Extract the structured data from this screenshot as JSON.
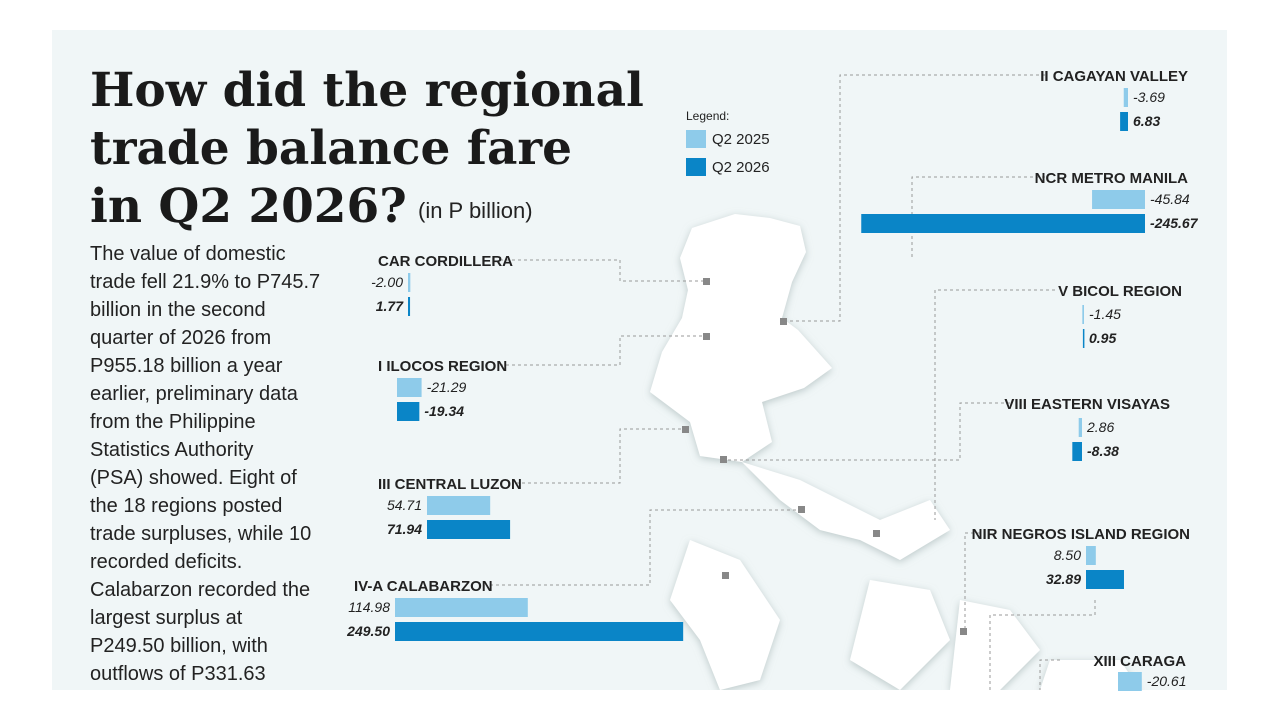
{
  "header": {
    "title_lines": [
      "How did the regional",
      "trade balance fare",
      "in Q2 2026?"
    ],
    "subtitle": "(in P billion)"
  },
  "body": [
    "The value of domestic",
    "trade fell 21.9% to P745.7",
    "billion in the second",
    "quarter of 2026 from",
    "P955.18 billion a year",
    "earlier, preliminary data",
    "from the Philippine",
    "Statistics Authority",
    "(PSA) showed. Eight of",
    "the 18 regions posted",
    "trade surpluses, while 10",
    "recorded deficits.",
    "Calabarzon recorded the",
    "largest surplus at",
    "P249.50 billion, with",
    "outflows of P331.63"
  ],
  "chart_data": {
    "type": "bar",
    "legend_title": "Legend:",
    "categories": [
      "CAR CORDILLERA",
      "I ILOCOS REGION",
      "III CENTRAL LUZON",
      "IV-A CALABARZON",
      "II CAGAYAN VALLEY",
      "NCR METRO MANILA",
      "V BICOL REGION",
      "VIII EASTERN VISAYAS",
      "NIR NEGROS ISLAND REGION",
      "XIII CARAGA"
    ],
    "series": [
      {
        "name": "Q2 2025",
        "color": "#8ecbea",
        "values": [
          -2.0,
          -21.29,
          54.71,
          114.98,
          -3.69,
          -45.84,
          -1.45,
          2.86,
          8.5,
          -20.61
        ],
        "value_labels": [
          "-2.00",
          "-21.29",
          "54.71",
          "114.98",
          "-3.69",
          "-45.84",
          "-1.45",
          "2.86",
          "8.50",
          "-20.61"
        ]
      },
      {
        "name": "Q2 2026",
        "color": "#0a85c7",
        "values": [
          1.77,
          -19.34,
          71.94,
          249.5,
          6.83,
          -245.67,
          0.95,
          -8.38,
          32.89,
          null
        ],
        "value_labels": [
          "1.77",
          "-19.34",
          "71.94",
          "249.50",
          "6.83",
          "-245.67",
          "0.95",
          "-8.38",
          "32.89",
          null
        ]
      }
    ]
  }
}
